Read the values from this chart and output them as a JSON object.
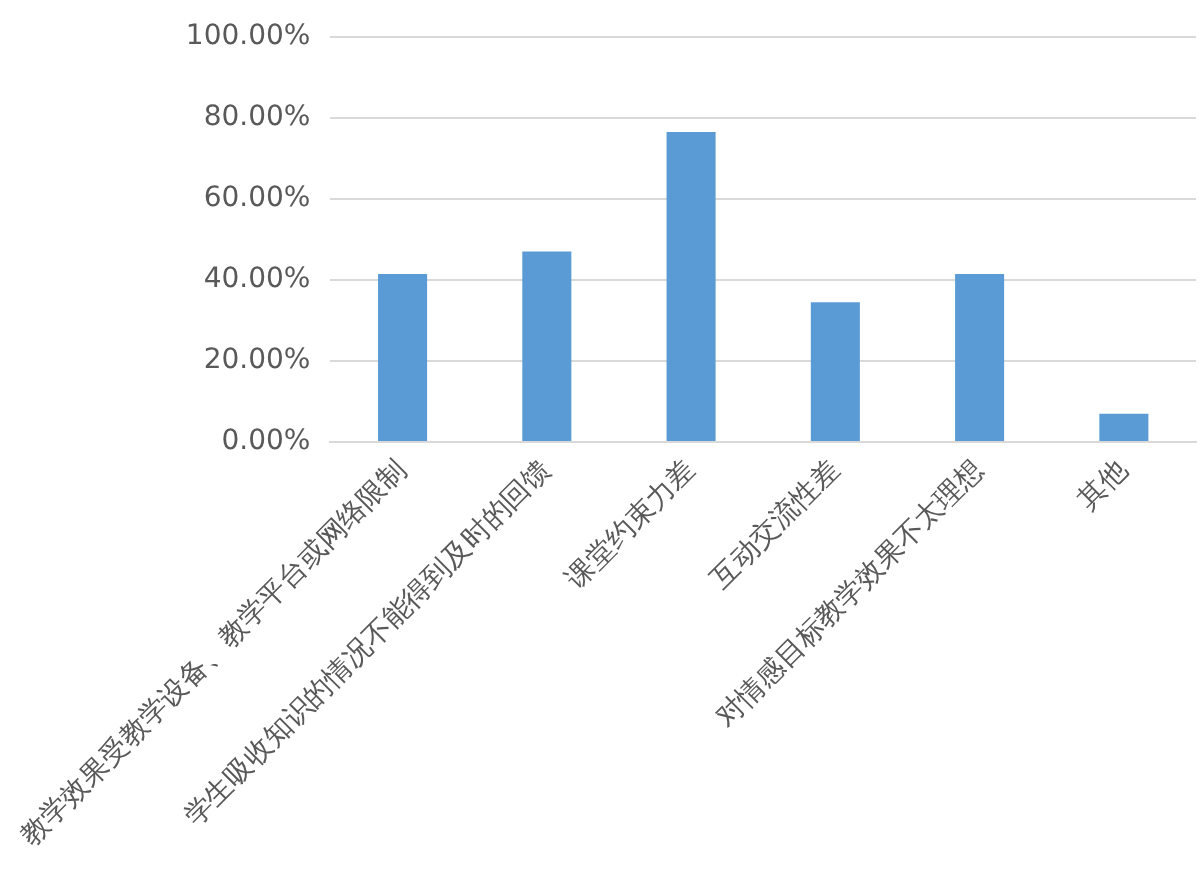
{
  "chart_data": {
    "type": "bar",
    "categories": [
      "教学效果受教学设备、教学平台或网络限制",
      "学生吸收知识的情况不能得到及时的回馈",
      "课堂约束力差",
      "互动交流性差",
      "对情感目标教学效果不太理想",
      "其他"
    ],
    "values": [
      41.5,
      47,
      76.5,
      34.5,
      41.5,
      7
    ],
    "color": "#5b9bd5",
    "ylim": [
      0,
      100
    ],
    "yticks": [
      {
        "value": 0,
        "label": "0.00%"
      },
      {
        "value": 20,
        "label": "20.00%"
      },
      {
        "value": 40,
        "label": "40.00%"
      },
      {
        "value": 60,
        "label": "60.00%"
      },
      {
        "value": 80,
        "label": "80.00%"
      },
      {
        "value": 100,
        "label": "100.00%"
      }
    ],
    "grid": "y"
  }
}
